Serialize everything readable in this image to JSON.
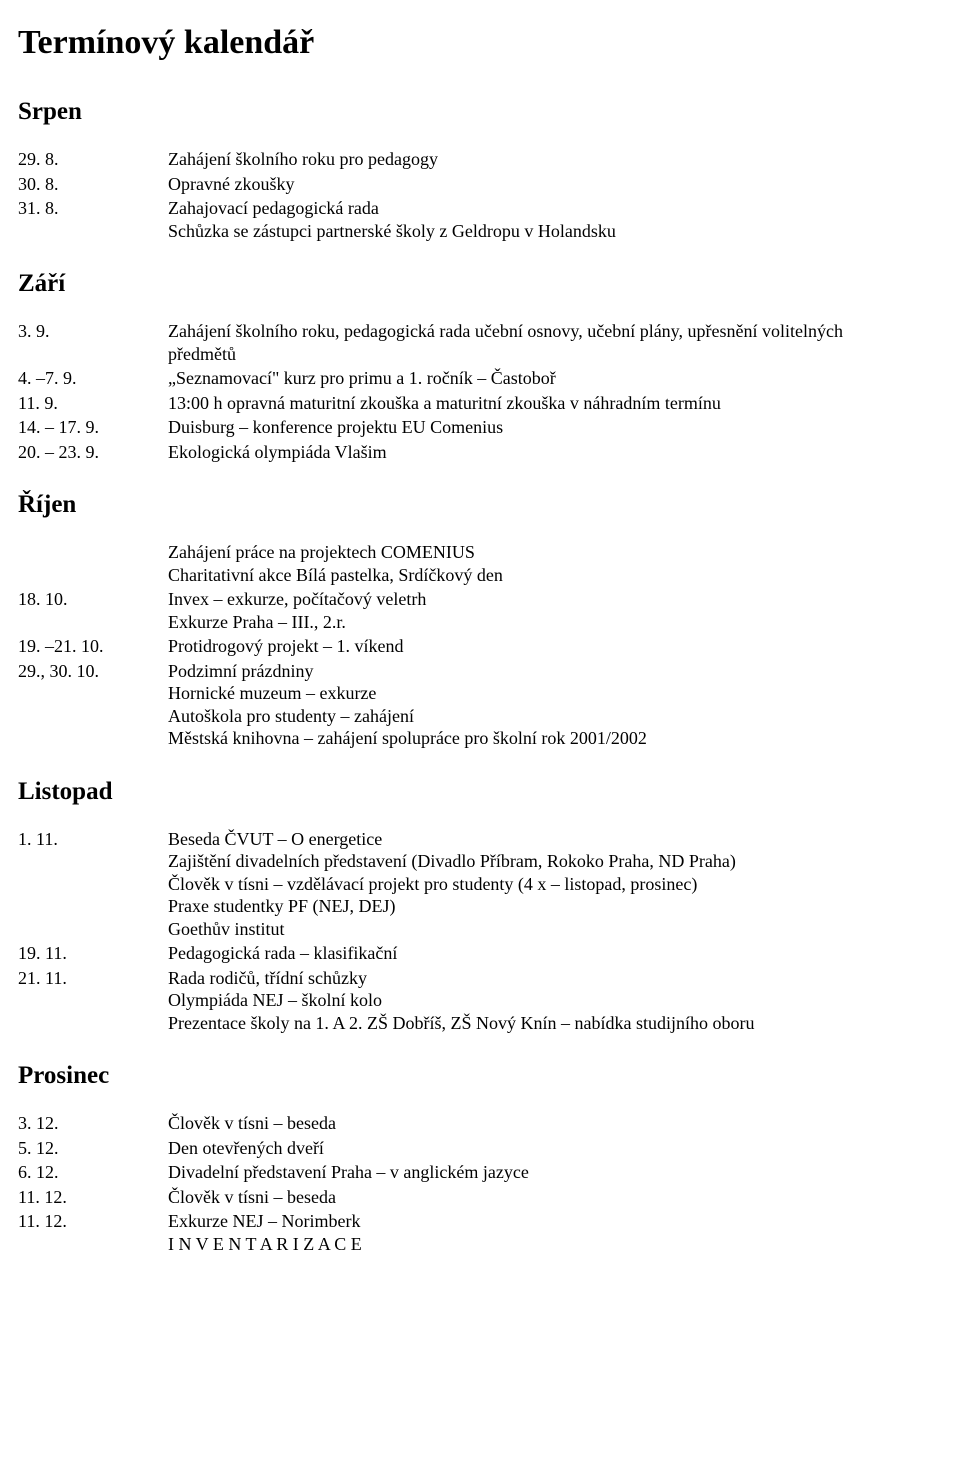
{
  "title": "Termínový kalendář",
  "sections": [
    {
      "heading": "Srpen",
      "entries": [
        {
          "date": "29. 8.",
          "lines": [
            "Zahájení školního roku pro pedagogy"
          ]
        },
        {
          "date": "30. 8.",
          "lines": [
            "Opravné zkoušky"
          ]
        },
        {
          "date": "31. 8.",
          "lines": [
            "Zahajovací pedagogická rada",
            "Schůzka se zástupci partnerské školy z Geldropu v Holandsku"
          ]
        }
      ]
    },
    {
      "heading": "Září",
      "entries": [
        {
          "date": "3. 9.",
          "lines": [
            "Zahájení školního roku, pedagogická rada učební osnovy, učební plány, upřesnění volitelných",
            "předmětů"
          ]
        },
        {
          "date": "4. –7. 9.",
          "lines": [
            "„Seznamovací\" kurz pro primu a 1. ročník – Častoboř"
          ]
        },
        {
          "date": "11. 9.",
          "lines": [
            "13:00 h  opravná maturitní zkouška a maturitní zkouška v náhradním termínu"
          ]
        },
        {
          "date": "14. – 17. 9.",
          "lines": [
            "Duisburg – konference projektu EU Comenius"
          ]
        },
        {
          "date": "20. – 23. 9.",
          "lines": [
            "Ekologická olympiáda Vlašim"
          ]
        }
      ]
    },
    {
      "heading": "Říjen",
      "entries": [
        {
          "date": "",
          "lines": [
            "Zahájení práce na projektech COMENIUS",
            "Charitativní akce Bílá pastelka, Srdíčkový den"
          ]
        },
        {
          "date": "18. 10.",
          "lines": [
            "Invex – exkurze, počítačový veletrh",
            "Exkurze Praha – III., 2.r."
          ]
        },
        {
          "date": "19. –21. 10.",
          "lines": [
            "Protidrogový projekt – 1. víkend"
          ]
        },
        {
          "date": "29., 30. 10.",
          "lines": [
            "Podzimní prázdniny",
            "Hornické muzeum – exkurze",
            "Autoškola pro studenty – zahájení",
            "Městská knihovna – zahájení spolupráce pro školní rok 2001/2002"
          ]
        }
      ]
    },
    {
      "heading": "Listopad",
      "entries": [
        {
          "date": "1. 11.",
          "lines": [
            "Beseda ČVUT – O energetice",
            "Zajištění divadelních představení (Divadlo Příbram, Rokoko Praha, ND Praha)",
            "Člověk v tísni – vzdělávací projekt pro studenty (4 x – listopad, prosinec)",
            "Praxe studentky PF (NEJ, DEJ)",
            "Goethův institut"
          ]
        },
        {
          "date": "19. 11.",
          "lines": [
            "Pedagogická rada – klasifikační"
          ]
        },
        {
          "date": "21. 11.",
          "lines": [
            "Rada rodičů, třídní schůzky",
            "Olympiáda NEJ – školní kolo",
            "Prezentace školy na 1. A 2. ZŠ Dobříš, ZŠ Nový Knín – nabídka studijního oboru"
          ]
        }
      ]
    },
    {
      "heading": "Prosinec",
      "entries": [
        {
          "date": "3. 12.",
          "lines": [
            "Člověk v tísni – beseda"
          ]
        },
        {
          "date": "5. 12.",
          "lines": [
            "Den otevřených dveří"
          ]
        },
        {
          "date": "6. 12.",
          "lines": [
            "Divadelní představení Praha – v anglickém jazyce"
          ]
        },
        {
          "date": "11. 12.",
          "lines": [
            "Člověk v tísni – beseda"
          ]
        },
        {
          "date": "11. 12.",
          "lines": [
            "Exkurze NEJ – Norimberk",
            "I N V E N T A R I Z A C E"
          ]
        }
      ]
    }
  ]
}
